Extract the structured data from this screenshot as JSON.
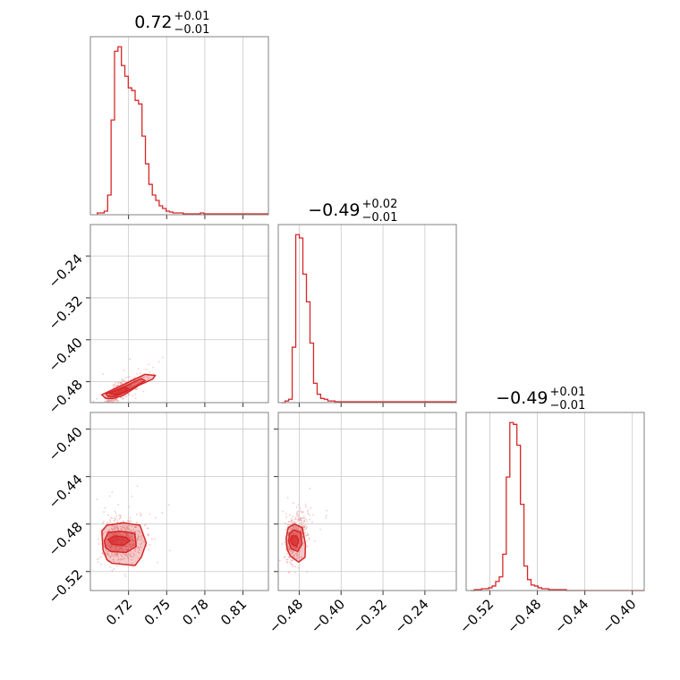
{
  "chart_data": [
    {
      "type": "histogram",
      "panel": "x-marginal",
      "title": {
        "value": "0.72",
        "plus": "+0.01",
        "minus": "−0.01"
      },
      "xlim": [
        0.69,
        0.83
      ],
      "bins": {
        "start": 0.6955,
        "width": 0.0027,
        "counts": [
          2,
          2,
          4,
          22,
          106,
          183,
          188,
          167,
          155,
          142,
          139,
          128,
          124,
          88,
          57,
          34,
          22,
          16,
          10,
          7,
          4,
          3,
          2,
          2,
          2,
          1,
          1,
          1,
          1,
          1,
          2,
          1,
          1,
          1,
          1,
          1,
          1,
          1,
          1,
          1,
          1,
          1,
          1,
          1,
          1,
          1,
          1,
          1,
          1,
          1
        ]
      },
      "color": "#d62728"
    },
    {
      "type": "histogram",
      "panel": "y-marginal",
      "title": {
        "value": "−0.49",
        "plus": "+0.02",
        "minus": "−0.01"
      },
      "xlim": [
        -0.52,
        -0.18
      ],
      "bins": {
        "start": -0.5138,
        "width": 0.0068,
        "counts": [
          0,
          2,
          4,
          66,
          200,
          196,
          153,
          120,
          71,
          23,
          10,
          5,
          4,
          2,
          2,
          1,
          1,
          1,
          1,
          1,
          1,
          1,
          1,
          1,
          1,
          1,
          1,
          1,
          1,
          1,
          1,
          1,
          1,
          1,
          1,
          1,
          1,
          1,
          1,
          1,
          1,
          1,
          1,
          1,
          1,
          1,
          1,
          1,
          1,
          1
        ]
      },
      "color": "#d62728"
    },
    {
      "type": "histogram",
      "panel": "z-marginal",
      "title": {
        "value": "−0.49",
        "plus": "+0.01",
        "minus": "−0.01"
      },
      "xlim": [
        -0.54,
        -0.39
      ],
      "bins": {
        "start": -0.536,
        "width": 0.00298,
        "counts": [
          0,
          1,
          1,
          2,
          2,
          3,
          5,
          10,
          15,
          40,
          125,
          185,
          183,
          160,
          95,
          27,
          12,
          6,
          5,
          3,
          2,
          2,
          1,
          1,
          1,
          1,
          1,
          0,
          0,
          0,
          0,
          0,
          0,
          0,
          0,
          0,
          0,
          0,
          0,
          0,
          0,
          0,
          0,
          0,
          0,
          0,
          0,
          0,
          0,
          0
        ]
      },
      "color": "#d62728"
    },
    {
      "type": "scatter",
      "panel": "x-vs-y",
      "xlim": [
        0.69,
        0.83
      ],
      "ylim": [
        -0.52,
        -0.18
      ],
      "center": [
        0.712,
        -0.498
      ],
      "contours": [
        {
          "level": 1,
          "points": [
            [
              0.708,
              -0.512
            ],
            [
              0.716,
              -0.506
            ],
            [
              0.728,
              -0.487
            ],
            [
              0.739,
              -0.475
            ],
            [
              0.741,
              -0.468
            ],
            [
              0.733,
              -0.466
            ],
            [
              0.719,
              -0.482
            ],
            [
              0.706,
              -0.497
            ],
            [
              0.699,
              -0.505
            ],
            [
              0.702,
              -0.512
            ]
          ]
        },
        {
          "level": 2,
          "points": [
            [
              0.709,
              -0.508
            ],
            [
              0.716,
              -0.502
            ],
            [
              0.726,
              -0.488
            ],
            [
              0.733,
              -0.478
            ],
            [
              0.73,
              -0.474
            ],
            [
              0.719,
              -0.487
            ],
            [
              0.708,
              -0.498
            ],
            [
              0.702,
              -0.503
            ],
            [
              0.704,
              -0.508
            ]
          ]
        },
        {
          "level": 3,
          "points": [
            [
              0.71,
              -0.505
            ],
            [
              0.716,
              -0.5
            ],
            [
              0.72,
              -0.493
            ],
            [
              0.717,
              -0.491
            ],
            [
              0.709,
              -0.497
            ],
            [
              0.705,
              -0.502
            ]
          ]
        }
      ],
      "color": "#d62728"
    },
    {
      "type": "scatter",
      "panel": "x-vs-z",
      "xlim": [
        0.69,
        0.83
      ],
      "ylim": [
        -0.536,
        -0.386
      ],
      "center": [
        0.712,
        -0.493
      ],
      "contours": [
        {
          "level": 1,
          "points": [
            [
              0.707,
              -0.513
            ],
            [
              0.725,
              -0.515
            ],
            [
              0.73,
              -0.508
            ],
            [
              0.734,
              -0.496
            ],
            [
              0.729,
              -0.481
            ],
            [
              0.716,
              -0.479
            ],
            [
              0.703,
              -0.481
            ],
            [
              0.699,
              -0.486
            ],
            [
              0.7,
              -0.502
            ],
            [
              0.703,
              -0.51
            ]
          ]
        },
        {
          "level": 2,
          "points": [
            [
              0.706,
              -0.503
            ],
            [
              0.718,
              -0.504
            ],
            [
              0.726,
              -0.499
            ],
            [
              0.725,
              -0.488
            ],
            [
              0.714,
              -0.486
            ],
            [
              0.704,
              -0.487
            ],
            [
              0.701,
              -0.494
            ],
            [
              0.702,
              -0.5
            ]
          ]
        },
        {
          "level": 3,
          "points": [
            [
              0.707,
              -0.497
            ],
            [
              0.716,
              -0.498
            ],
            [
              0.721,
              -0.494
            ],
            [
              0.718,
              -0.491
            ],
            [
              0.709,
              -0.49
            ],
            [
              0.704,
              -0.493
            ]
          ]
        }
      ],
      "color": "#d62728"
    },
    {
      "type": "scatter",
      "panel": "y-vs-z",
      "xlim": [
        -0.52,
        -0.18
      ],
      "ylim": [
        -0.536,
        -0.386
      ],
      "center": [
        -0.49,
        -0.491
      ],
      "contours": [
        {
          "level": 1,
          "points": [
            [
              -0.497,
              -0.507
            ],
            [
              -0.481,
              -0.512
            ],
            [
              -0.469,
              -0.508
            ],
            [
              -0.468,
              -0.497
            ],
            [
              -0.474,
              -0.483
            ],
            [
              -0.489,
              -0.48
            ],
            [
              -0.501,
              -0.483
            ],
            [
              -0.505,
              -0.492
            ],
            [
              -0.503,
              -0.501
            ]
          ]
        },
        {
          "level": 2,
          "points": [
            [
              -0.495,
              -0.501
            ],
            [
              -0.483,
              -0.503
            ],
            [
              -0.475,
              -0.497
            ],
            [
              -0.477,
              -0.487
            ],
            [
              -0.49,
              -0.485
            ],
            [
              -0.499,
              -0.488
            ],
            [
              -0.5,
              -0.495
            ]
          ]
        },
        {
          "level": 3,
          "points": [
            [
              -0.493,
              -0.497
            ],
            [
              -0.485,
              -0.499
            ],
            [
              -0.481,
              -0.494
            ],
            [
              -0.485,
              -0.49
            ],
            [
              -0.494,
              -0.49
            ],
            [
              -0.497,
              -0.494
            ]
          ]
        }
      ],
      "color": "#d62728"
    }
  ],
  "axes": {
    "x_ticks": [
      "0.72",
      "0.75",
      "0.78",
      "0.81"
    ],
    "x_tick_values": [
      0.72,
      0.75,
      0.78,
      0.81
    ],
    "y_ticks": [
      "−0.48",
      "−0.40",
      "−0.32",
      "−0.24"
    ],
    "y_tick_values": [
      -0.48,
      -0.4,
      -0.32,
      -0.24
    ],
    "z_ticks": [
      "−0.52",
      "−0.48",
      "−0.44",
      "−0.40"
    ],
    "z_tick_values": [
      -0.52,
      -0.48,
      -0.44,
      -0.4
    ]
  },
  "colors": {
    "series": "#d62728",
    "frame": "#808080",
    "grid": "#c8c8c8"
  }
}
